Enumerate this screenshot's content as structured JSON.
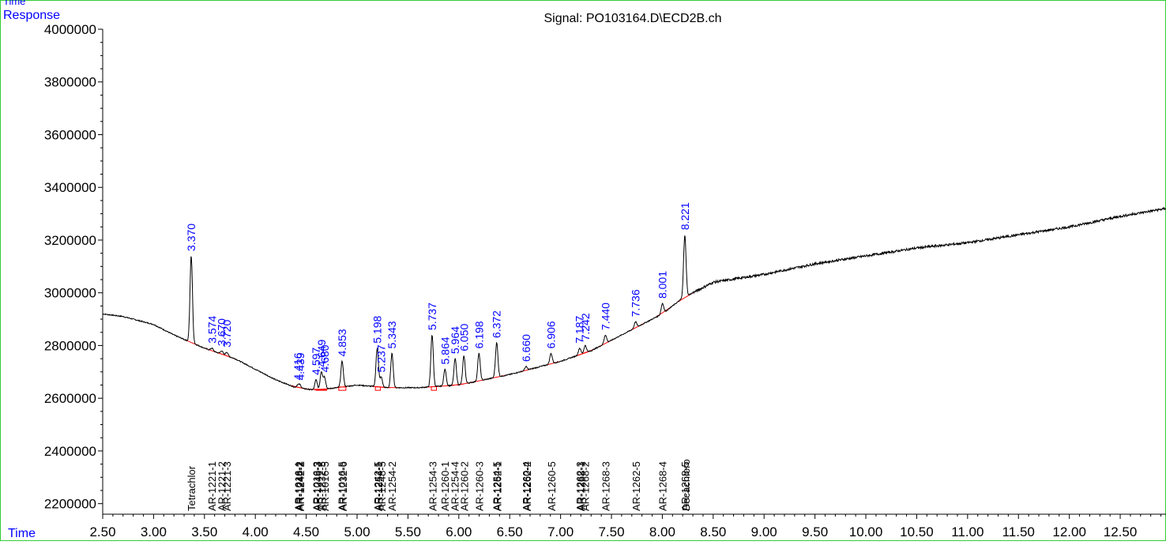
{
  "header": {
    "corner_label": "Time",
    "y_axis_title": "Response",
    "signal_title": "Signal: PO103164.D\\ECD2B.ch",
    "x_axis_title": "Time"
  },
  "colors": {
    "trace": "#000000",
    "peak_label": "#0000ff",
    "axis_title": "#0000ff",
    "baseline_box": "#ff0000",
    "frame": "#00cc00"
  },
  "chart_data": {
    "type": "line",
    "title": "Signal: PO103164.D\\ECD2B.ch",
    "xlabel": "Time",
    "ylabel": "Response",
    "xlim": [
      2.5,
      12.95
    ],
    "ylim": [
      2160000,
      4000000
    ],
    "x_ticks": [
      2.5,
      3.0,
      3.5,
      4.0,
      4.5,
      5.0,
      5.5,
      6.0,
      6.5,
      7.0,
      7.5,
      8.0,
      8.5,
      9.0,
      9.5,
      10.0,
      10.5,
      11.0,
      11.5,
      12.0,
      12.5
    ],
    "x_tick_labels": [
      "2.50",
      "3.00",
      "3.50",
      "4.00",
      "4.50",
      "5.00",
      "5.50",
      "6.00",
      "6.50",
      "7.00",
      "7.50",
      "8.00",
      "8.50",
      "9.00",
      "9.50",
      "10.00",
      "10.50",
      "11.00",
      "11.50",
      "12.00",
      "12.50"
    ],
    "y_ticks": [
      2200000,
      2400000,
      2600000,
      2800000,
      3000000,
      3200000,
      3400000,
      3600000,
      3800000,
      4000000
    ],
    "y_tick_labels": [
      "2200000",
      "2400000",
      "2600000",
      "2800000",
      "3000000",
      "3200000",
      "3400000",
      "3600000",
      "3800000",
      "4000000"
    ],
    "baseline": [
      [
        2.5,
        2920000
      ],
      [
        2.7,
        2910000
      ],
      [
        3.0,
        2880000
      ],
      [
        3.2,
        2840000
      ],
      [
        3.5,
        2790000
      ],
      [
        3.8,
        2750000
      ],
      [
        4.0,
        2710000
      ],
      [
        4.2,
        2670000
      ],
      [
        4.4,
        2640000
      ],
      [
        4.6,
        2630000
      ],
      [
        5.0,
        2650000
      ],
      [
        5.3,
        2640000
      ],
      [
        5.6,
        2640000
      ],
      [
        6.0,
        2650000
      ],
      [
        6.5,
        2690000
      ],
      [
        7.0,
        2740000
      ],
      [
        7.3,
        2780000
      ],
      [
        7.6,
        2840000
      ],
      [
        8.0,
        2920000
      ],
      [
        8.2,
        2980000
      ],
      [
        8.5,
        3040000
      ],
      [
        9.0,
        3070000
      ],
      [
        9.5,
        3110000
      ],
      [
        10.0,
        3140000
      ],
      [
        10.5,
        3170000
      ],
      [
        11.0,
        3190000
      ],
      [
        11.5,
        3220000
      ],
      [
        12.0,
        3250000
      ],
      [
        12.5,
        3290000
      ],
      [
        12.95,
        3320000
      ]
    ],
    "peaks": [
      {
        "rt": 3.37,
        "label": "3.370",
        "height": 3140000
      },
      {
        "rt": 3.574,
        "label": "3.574",
        "height": 2790000
      },
      {
        "rt": 3.67,
        "label": "3.670",
        "height": 2780000
      },
      {
        "rt": 3.72,
        "label": "3.720",
        "height": 2775000
      },
      {
        "rt": 4.416,
        "label": "4.416",
        "height": 2650000
      },
      {
        "rt": 4.439,
        "label": "4.439",
        "height": 2650000
      },
      {
        "rt": 4.597,
        "label": "4.597",
        "height": 2670000
      },
      {
        "rt": 4.649,
        "label": "4.649",
        "height": 2700000
      },
      {
        "rt": 4.68,
        "label": "4.680",
        "height": 2680000
      },
      {
        "rt": 4.853,
        "label": "4.853",
        "height": 2740000
      },
      {
        "rt": 5.198,
        "label": "5.198",
        "height": 2790000
      },
      {
        "rt": 5.237,
        "label": "5.237",
        "height": 2680000
      },
      {
        "rt": 5.343,
        "label": "5.343",
        "height": 2770000
      },
      {
        "rt": 5.737,
        "label": "5.737",
        "height": 2840000
      },
      {
        "rt": 5.864,
        "label": "5.864",
        "height": 2710000
      },
      {
        "rt": 5.964,
        "label": "5.964",
        "height": 2750000
      },
      {
        "rt": 6.05,
        "label": "6.050",
        "height": 2760000
      },
      {
        "rt": 6.198,
        "label": "6.198",
        "height": 2770000
      },
      {
        "rt": 6.372,
        "label": "6.372",
        "height": 2810000
      },
      {
        "rt": 6.66,
        "label": "6.660",
        "height": 2720000
      },
      {
        "rt": 6.906,
        "label": "6.906",
        "height": 2770000
      },
      {
        "rt": 7.187,
        "label": "7.187",
        "height": 2790000
      },
      {
        "rt": 7.242,
        "label": "7.242",
        "height": 2800000
      },
      {
        "rt": 7.44,
        "label": "7.440",
        "height": 2840000
      },
      {
        "rt": 7.736,
        "label": "7.736",
        "height": 2890000
      },
      {
        "rt": 8.001,
        "label": "8.001",
        "height": 2960000
      },
      {
        "rt": 8.221,
        "label": "8.221",
        "height": 3220000
      }
    ],
    "compound_markers": [
      {
        "rt": 3.37,
        "lines": [
          "Tetrachlor"
        ]
      },
      {
        "rt": 3.57,
        "lines": [
          "AR-1221-1"
        ]
      },
      {
        "rt": 3.67,
        "lines": [
          "AR-1221-2"
        ]
      },
      {
        "rt": 3.72,
        "lines": [
          "AR-1221-3"
        ]
      },
      {
        "rt": 4.42,
        "lines": [
          "AR-1016-1",
          "AR-1248-2"
        ]
      },
      {
        "rt": 4.44,
        "lines": [
          "AR-1242-2"
        ]
      },
      {
        "rt": 4.6,
        "lines": [
          "AR-1016-3",
          "AR-1248-3"
        ]
      },
      {
        "rt": 4.65,
        "lines": [
          "AR-1232-5"
        ]
      },
      {
        "rt": 4.68,
        "lines": [
          "AR-1016-5"
        ]
      },
      {
        "rt": 4.85,
        "lines": [
          "AR-1016-5",
          "AR-1232-6"
        ]
      },
      {
        "rt": 5.2,
        "lines": [
          "AR-1242-5",
          "AR-1254-1"
        ]
      },
      {
        "rt": 5.24,
        "lines": [
          "AR-1248-5"
        ]
      },
      {
        "rt": 5.34,
        "lines": [
          "AR-1254-2"
        ]
      },
      {
        "rt": 5.74,
        "lines": [
          "AR-1254-3"
        ]
      },
      {
        "rt": 5.86,
        "lines": [
          "AR-1260-1"
        ]
      },
      {
        "rt": 5.96,
        "lines": [
          "AR-1254-4"
        ]
      },
      {
        "rt": 6.05,
        "lines": [
          "AR-1260-2"
        ]
      },
      {
        "rt": 6.2,
        "lines": [
          "AR-1260-3"
        ]
      },
      {
        "rt": 6.37,
        "lines": [
          "AR-1254-5",
          "AR-1262-1"
        ]
      },
      {
        "rt": 6.66,
        "lines": [
          "AR-1260-4",
          "AR-1262-2"
        ]
      },
      {
        "rt": 6.91,
        "lines": [
          "AR-1260-5"
        ]
      },
      {
        "rt": 7.19,
        "lines": [
          "AR-1262-3",
          "AR-1268-1"
        ]
      },
      {
        "rt": 7.24,
        "lines": [
          "AR-1268-2"
        ]
      },
      {
        "rt": 7.44,
        "lines": [
          "AR-1268-3"
        ]
      },
      {
        "rt": 7.74,
        "lines": [
          "AR-1262-5"
        ]
      },
      {
        "rt": 8.0,
        "lines": [
          "AR-1268-4"
        ]
      },
      {
        "rt": 8.22,
        "lines": [
          "AR-1268-5",
          "Decachloro"
        ]
      }
    ],
    "integration_boxes": [
      {
        "x1": 4.6,
        "x2": 4.7
      },
      {
        "x1": 4.82,
        "x2": 4.89
      },
      {
        "x1": 5.18,
        "x2": 5.23
      },
      {
        "x1": 5.73,
        "x2": 5.78
      }
    ],
    "grid": false
  }
}
